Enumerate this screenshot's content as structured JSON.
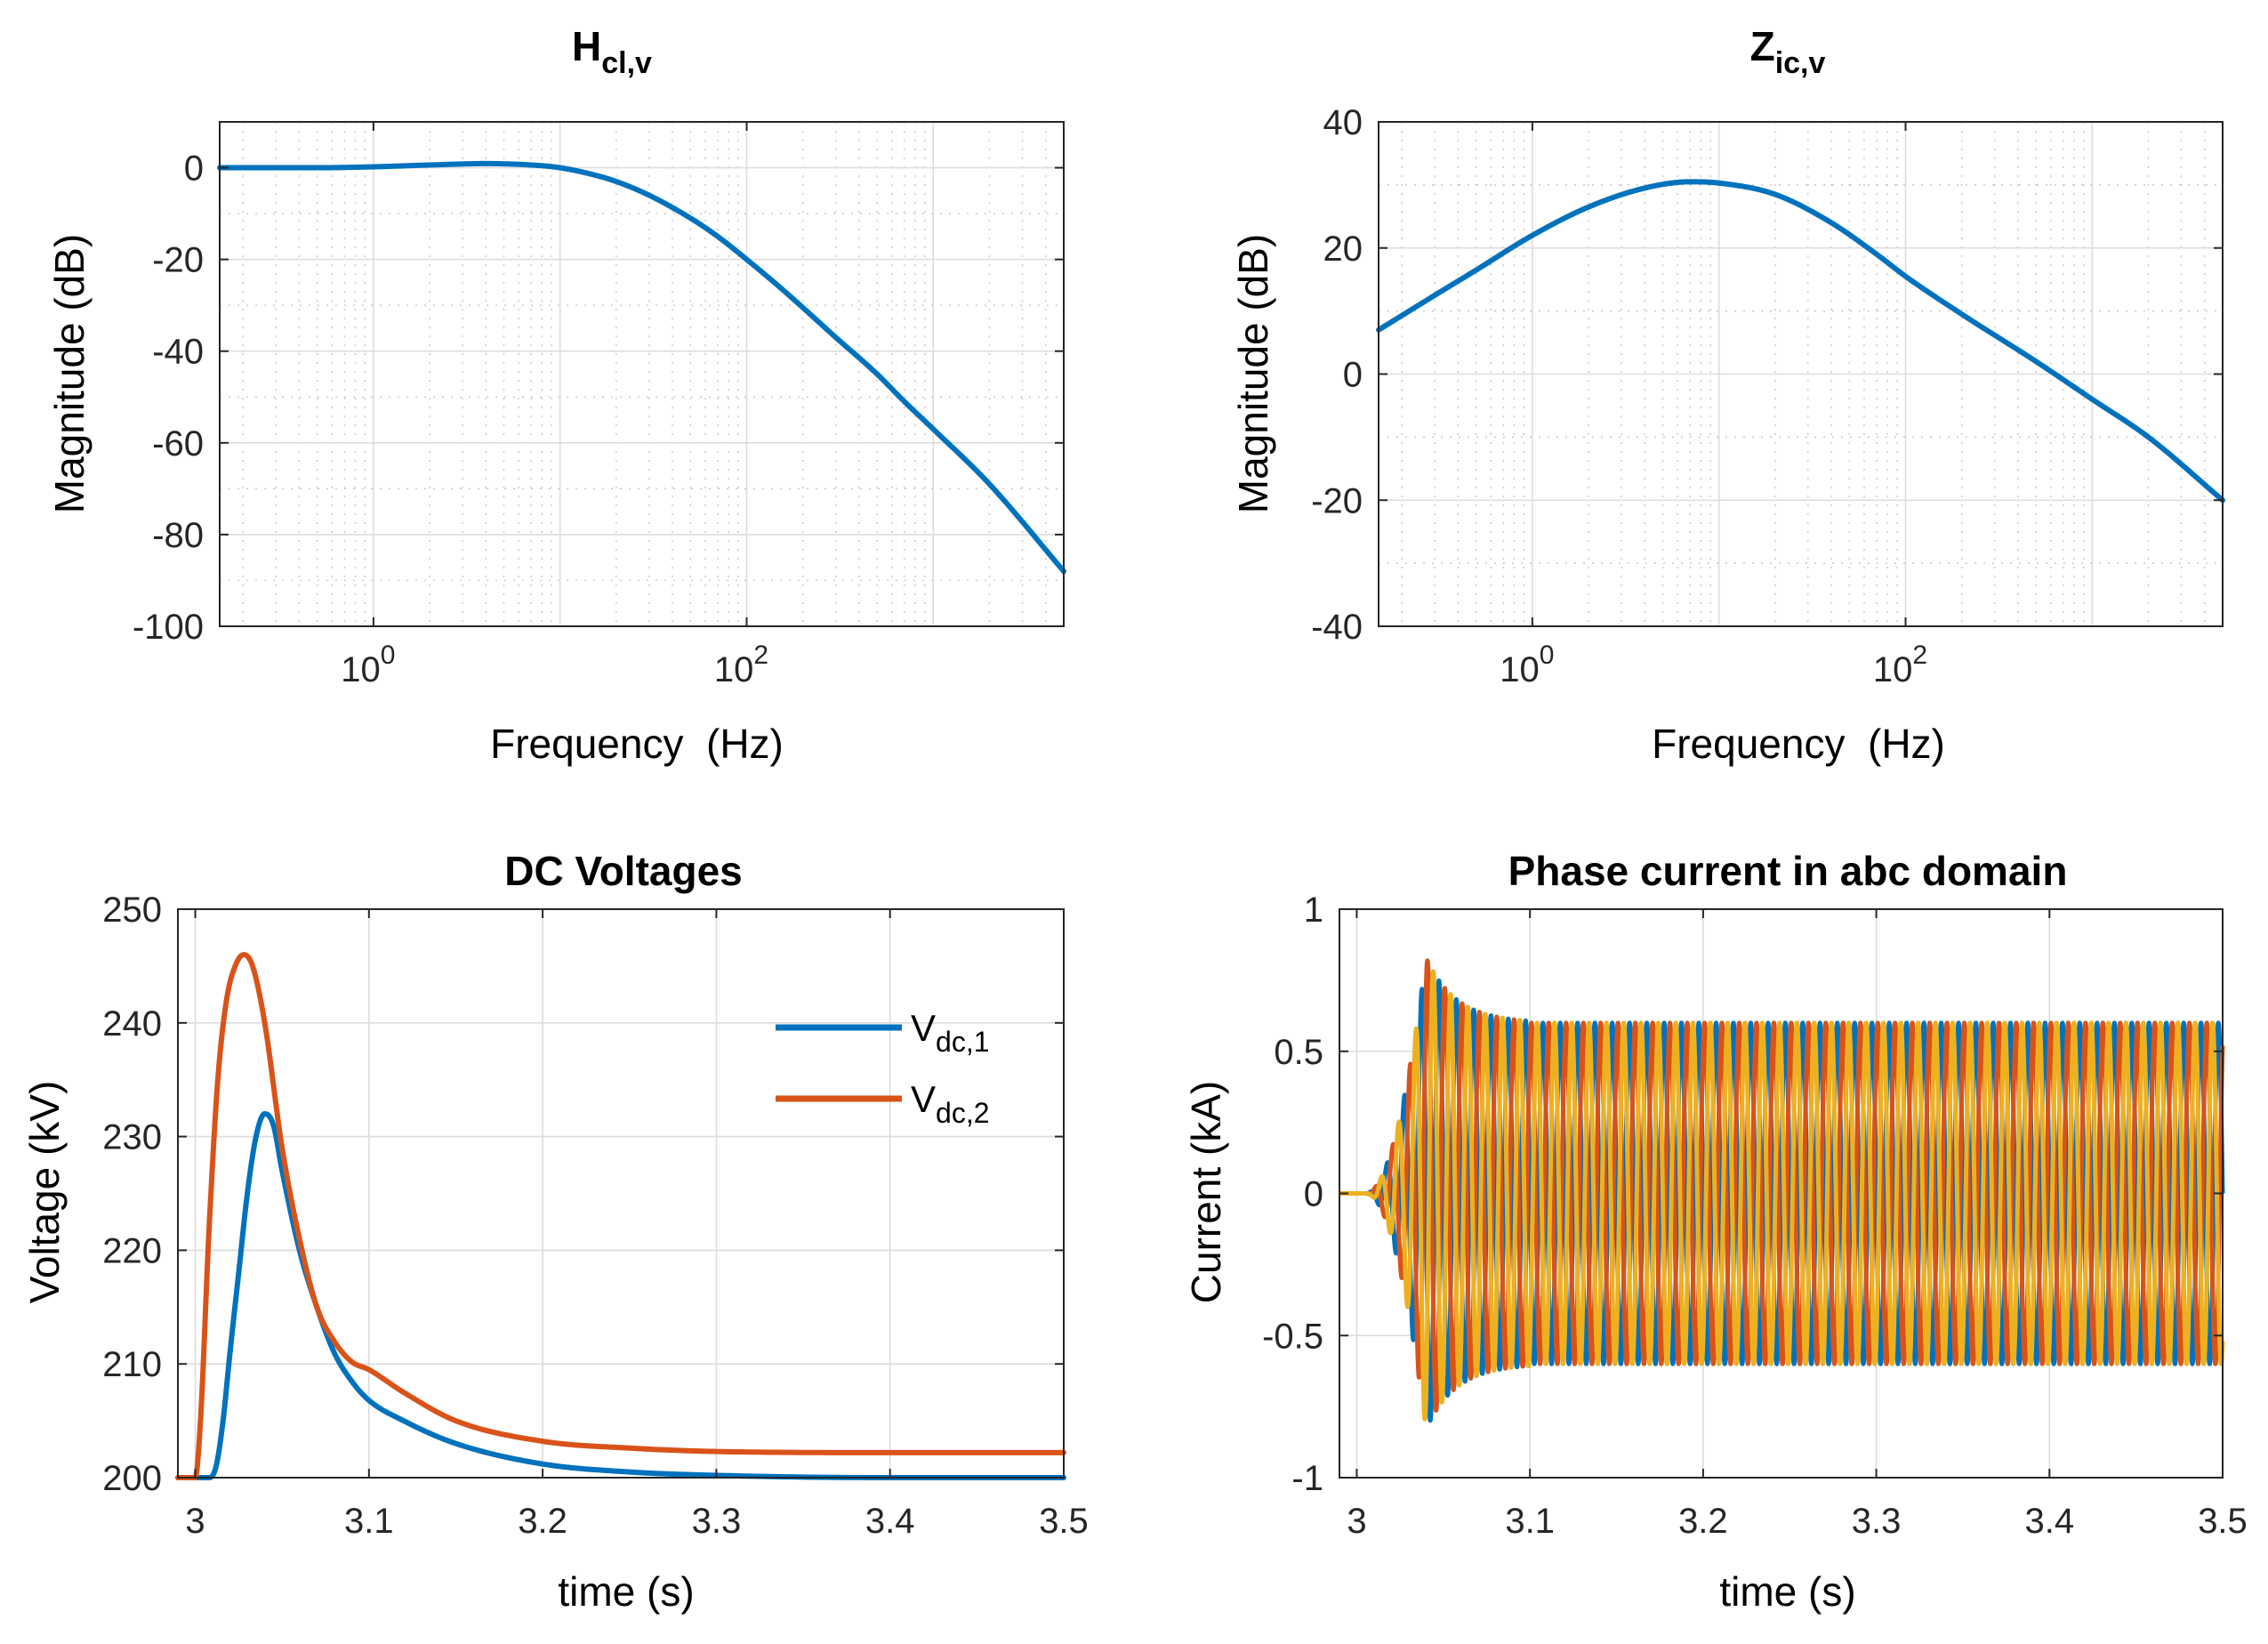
{
  "chart_data": [
    {
      "id": "hcl",
      "type": "line",
      "title": "H",
      "title_sub": "cl,v",
      "xlabel": "Frequency  (Hz)",
      "ylabel": "Magnitude (dB)",
      "xscale": "log",
      "xlim": [
        0.15,
        5000
      ],
      "ylim": [
        -100,
        10
      ],
      "xticks": [
        {
          "value": 1,
          "base": "10",
          "exp": "0"
        },
        {
          "value": 100,
          "base": "10",
          "exp": "2"
        }
      ],
      "yticks": [
        0,
        -20,
        -40,
        -60,
        -80,
        -100
      ],
      "grid": true,
      "minor_grid": true,
      "series": [
        {
          "color": "#0072BD",
          "points": [
            [
              0.15,
              0
            ],
            [
              0.5,
              0
            ],
            [
              1,
              0.2
            ],
            [
              2,
              0.6
            ],
            [
              4,
              0.9
            ],
            [
              7,
              0.6
            ],
            [
              10,
              0
            ],
            [
              15,
              -1.5
            ],
            [
              20,
              -3
            ],
            [
              30,
              -6
            ],
            [
              50,
              -11
            ],
            [
              70,
              -15
            ],
            [
              100,
              -20
            ],
            [
              150,
              -26
            ],
            [
              200,
              -30.5
            ],
            [
              300,
              -37
            ],
            [
              500,
              -45
            ],
            [
              700,
              -51
            ],
            [
              1000,
              -57
            ],
            [
              2000,
              -69
            ],
            [
              5000,
              -88
            ]
          ]
        }
      ]
    },
    {
      "id": "zic",
      "type": "line",
      "title": "Z",
      "title_sub": "ic,v",
      "xlabel": "Frequency  (Hz)",
      "ylabel": "Magnitude (dB)",
      "xscale": "log",
      "xlim": [
        0.15,
        5000
      ],
      "ylim": [
        -40,
        40
      ],
      "xticks": [
        {
          "value": 1,
          "base": "10",
          "exp": "0"
        },
        {
          "value": 100,
          "base": "10",
          "exp": "2"
        }
      ],
      "yticks": [
        40,
        20,
        0,
        -20,
        -40
      ],
      "grid": true,
      "minor_grid": true,
      "series": [
        {
          "color": "#0072BD",
          "points": [
            [
              0.15,
              7
            ],
            [
              0.3,
              12.5
            ],
            [
              0.5,
              16.5
            ],
            [
              1,
              22
            ],
            [
              2,
              26.5
            ],
            [
              4,
              29.5
            ],
            [
              7,
              30.5
            ],
            [
              10,
              30.3
            ],
            [
              20,
              28.5
            ],
            [
              40,
              24
            ],
            [
              70,
              19
            ],
            [
              100,
              15.5
            ],
            [
              200,
              9.5
            ],
            [
              500,
              2
            ],
            [
              1000,
              -4
            ],
            [
              2000,
              -10
            ],
            [
              5000,
              -20
            ]
          ]
        }
      ]
    },
    {
      "id": "dcv",
      "type": "line",
      "title": "DC Voltages",
      "xlabel": "time (s)",
      "ylabel": "Voltage (kV)",
      "xlim": [
        2.99,
        3.5
      ],
      "ylim": [
        200,
        250
      ],
      "xticks": [
        "3",
        "3.1",
        "3.2",
        "3.3",
        "3.4",
        "3.5"
      ],
      "yticks": [
        "200",
        "210",
        "220",
        "230",
        "240",
        "250"
      ],
      "grid": true,
      "legend_position": "top-right",
      "series": [
        {
          "name_main": "V",
          "name_sub": "dc,1",
          "color": "#0072BD",
          "points": [
            [
              2.99,
              200
            ],
            [
              3.008,
              200
            ],
            [
              3.012,
              201
            ],
            [
              3.016,
              205
            ],
            [
              3.02,
              211
            ],
            [
              3.025,
              218
            ],
            [
              3.03,
              225
            ],
            [
              3.035,
              230
            ],
            [
              3.04,
              232
            ],
            [
              3.045,
              231
            ],
            [
              3.05,
              227
            ],
            [
              3.06,
              220
            ],
            [
              3.07,
              215
            ],
            [
              3.08,
              211
            ],
            [
              3.09,
              208.5
            ],
            [
              3.1,
              206.8
            ],
            [
              3.12,
              205
            ],
            [
              3.15,
              203
            ],
            [
              3.2,
              201.2
            ],
            [
              3.25,
              200.5
            ],
            [
              3.3,
              200.2
            ],
            [
              3.4,
              200
            ],
            [
              3.5,
              200
            ]
          ]
        },
        {
          "name_main": "V",
          "name_sub": "dc,2",
          "color": "#D95319",
          "points": [
            [
              2.99,
              200
            ],
            [
              3.0,
              200
            ],
            [
              3.003,
              205
            ],
            [
              3.008,
              222
            ],
            [
              3.013,
              235
            ],
            [
              3.018,
              242
            ],
            [
              3.023,
              245
            ],
            [
              3.028,
              246
            ],
            [
              3.033,
              245
            ],
            [
              3.04,
              240
            ],
            [
              3.05,
              229
            ],
            [
              3.06,
              221
            ],
            [
              3.07,
              215
            ],
            [
              3.08,
              212
            ],
            [
              3.09,
              210.2
            ],
            [
              3.1,
              209.5
            ],
            [
              3.12,
              207.5
            ],
            [
              3.15,
              205
            ],
            [
              3.2,
              203.2
            ],
            [
              3.25,
              202.6
            ],
            [
              3.3,
              202.3
            ],
            [
              3.4,
              202.2
            ],
            [
              3.5,
              202.2
            ]
          ]
        }
      ]
    },
    {
      "id": "phase",
      "type": "line",
      "title": "Phase current in abc domain",
      "xlabel": "time (s)",
      "ylabel": "Current (kA)",
      "xlim": [
        2.99,
        3.5
      ],
      "ylim": [
        -1,
        1
      ],
      "xticks": [
        "3",
        "3.1",
        "3.2",
        "3.3",
        "3.4",
        "3.5"
      ],
      "yticks": [
        "1",
        "0.5",
        "0",
        "-0.5",
        "-1"
      ],
      "grid": true,
      "oscillation": {
        "frequency_hz": 100,
        "onset_time": 3.005,
        "steady_amplitude": 0.6,
        "peak_amplitude": 0.83,
        "peak_time": 3.05,
        "settle_time": 3.1,
        "phase_order": [
          "blue",
          "orange",
          "yellow"
        ]
      },
      "series": [
        {
          "color": "#0072BD"
        },
        {
          "color": "#D95319"
        },
        {
          "color": "#EDB120"
        }
      ]
    }
  ]
}
